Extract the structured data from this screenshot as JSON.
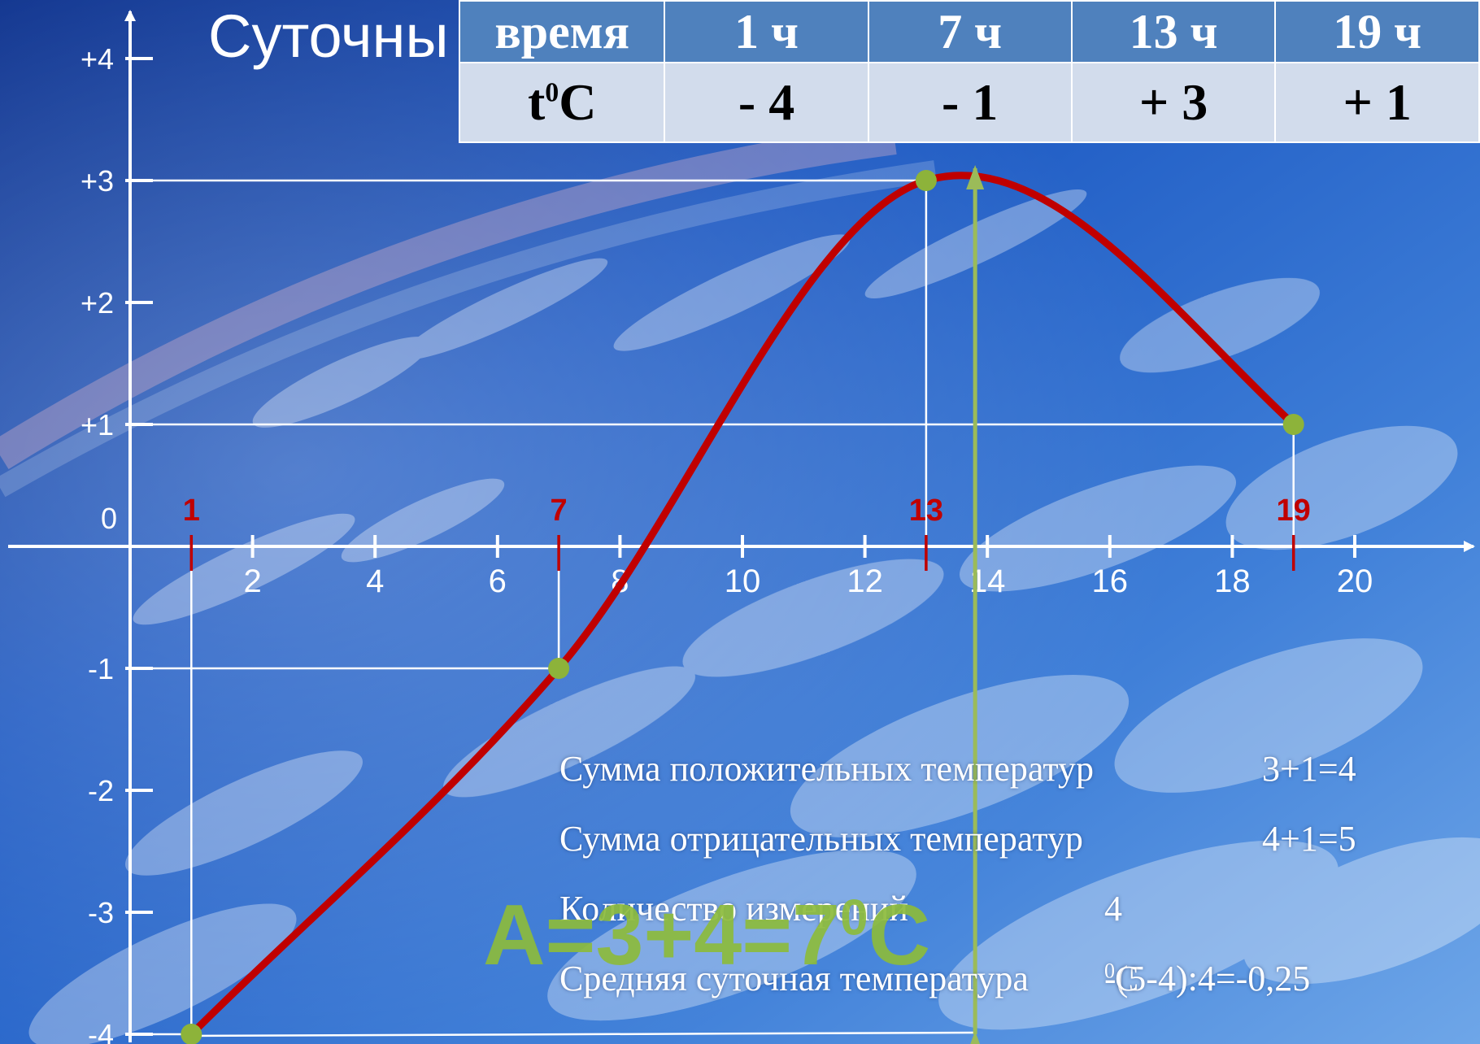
{
  "chart_data": {
    "type": "line",
    "title": "Суточны",
    "x": [
      1,
      7,
      13,
      19
    ],
    "y": [
      -4,
      -1,
      3,
      1
    ],
    "x_ticks": [
      2,
      4,
      6,
      8,
      10,
      12,
      14,
      16,
      18,
      20
    ],
    "y_ticks": [
      -4,
      -3,
      -2,
      -1,
      0,
      1,
      2,
      3,
      4
    ],
    "y_tick_labels": [
      "-4",
      "-3",
      "-2",
      "-1",
      "0",
      "+1",
      "+2",
      "+3",
      "+4"
    ],
    "point_labels": [
      "1",
      "7",
      "13",
      "19"
    ],
    "xlim": [
      -2,
      22
    ],
    "ylim": [
      -4,
      4
    ],
    "amplitude_arrow": {
      "x": 13.8,
      "from": -4,
      "to": 3.1
    },
    "grid": false,
    "colors": {
      "curve": "#c00000",
      "marker": "#8db33a",
      "arrow": "#9bbb59",
      "axes": "#ffffff",
      "label_red": "#c00000"
    }
  },
  "table": {
    "headers": [
      "время",
      "1 ч",
      "7 ч",
      "13 ч",
      "19 ч"
    ],
    "row_label_base": "t",
    "row_label_sup": "0",
    "row_label_unit": "C",
    "values": [
      "- 4",
      "- 1",
      "+ 3",
      "+ 1"
    ]
  },
  "stats": [
    {
      "label": "Сумма положительных температур",
      "value": "3+1=4"
    },
    {
      "label": "Сумма отрицательных температур",
      "value": "4+1=5"
    },
    {
      "label": "Количество измерений",
      "value": "4"
    },
    {
      "label": "Средняя суточная температура",
      "value_pre": "-(5-4):4=-0,25",
      "value_sup": "0",
      "value_post": "C"
    }
  ],
  "amplitude": {
    "pre": "А=3+4=7",
    "sup": "0",
    "post": "С"
  }
}
